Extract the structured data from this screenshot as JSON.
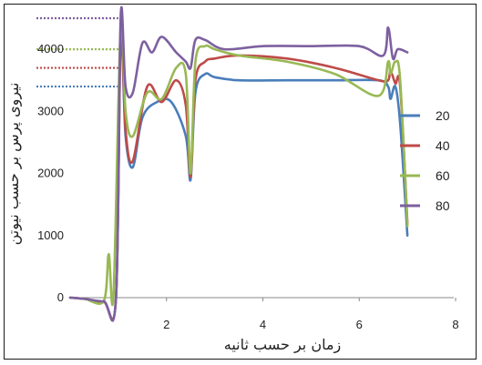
{
  "chart_data": {
    "type": "line",
    "title": "",
    "xlabel": "زمان بر حسب ثانیه",
    "ylabel": "نیروی پرس بر حسب نیوتن",
    "xlim": [
      0,
      8
    ],
    "ylim": [
      0,
      4500
    ],
    "x_ticks": [
      "2",
      "4",
      "6",
      "8"
    ],
    "y_ticks": [
      "0",
      "1000",
      "2000",
      "3000",
      "4000"
    ],
    "grid": false,
    "legend_position": "right",
    "series": [
      {
        "name": "20",
        "color": "#4a7ebb",
        "x": [
          0,
          0.3,
          0.7,
          0.95,
          1.05,
          1.15,
          1.3,
          1.5,
          1.8,
          2.1,
          2.4,
          2.5,
          2.6,
          2.8,
          3.0,
          3.5,
          4.5,
          5.5,
          6.4,
          6.6,
          6.65,
          6.75,
          6.85,
          7.0
        ],
        "y": [
          0,
          -20,
          -70,
          -20,
          4200,
          2600,
          2100,
          2900,
          3150,
          3150,
          2600,
          1900,
          3300,
          3600,
          3550,
          3500,
          3500,
          3500,
          3500,
          3400,
          3200,
          3400,
          2800,
          1000
        ]
      },
      {
        "name": "40",
        "color": "#be4b48",
        "x": [
          0,
          0.3,
          0.7,
          0.95,
          1.05,
          1.15,
          1.3,
          1.6,
          1.9,
          2.2,
          2.4,
          2.5,
          2.6,
          2.8,
          3.0,
          3.5,
          4.5,
          5.5,
          6.4,
          6.6,
          6.65,
          6.75,
          6.85,
          7.0
        ],
        "y": [
          0,
          -20,
          -70,
          -20,
          4300,
          2700,
          2200,
          3400,
          3150,
          3500,
          3100,
          1950,
          3500,
          3800,
          3850,
          3900,
          3850,
          3700,
          3500,
          3500,
          3650,
          3450,
          3400,
          1200
        ]
      },
      {
        "name": "60",
        "color": "#98b954",
        "x": [
          0,
          0.3,
          0.7,
          0.8,
          0.9,
          1.05,
          1.15,
          1.3,
          1.6,
          1.9,
          2.2,
          2.4,
          2.5,
          2.6,
          2.8,
          3.0,
          3.5,
          4.5,
          5.5,
          6.4,
          6.6,
          6.65,
          6.75,
          6.85,
          7.0
        ],
        "y": [
          0,
          -20,
          -50,
          700,
          50,
          4400,
          3000,
          2600,
          3300,
          3200,
          3700,
          3600,
          2000,
          3800,
          4050,
          4000,
          3900,
          3800,
          3600,
          3250,
          3800,
          3600,
          3800,
          3500,
          1150
        ]
      },
      {
        "name": "80",
        "color": "#7d60a0",
        "x": [
          0,
          0.3,
          0.7,
          0.95,
          1.05,
          1.15,
          1.3,
          1.5,
          1.7,
          1.9,
          2.2,
          2.4,
          2.5,
          2.6,
          2.8,
          3.2,
          4.0,
          5.0,
          6.0,
          6.5,
          6.6,
          6.7,
          6.8,
          7.0
        ],
        "y": [
          0,
          -20,
          -60,
          -20,
          4550,
          3400,
          3300,
          4100,
          3950,
          4200,
          3950,
          3800,
          3700,
          4150,
          4150,
          4000,
          4050,
          4050,
          4050,
          3900,
          4350,
          3850,
          4000,
          3950
        ]
      }
    ],
    "reference_lines": [
      {
        "y": 4500,
        "color": "#7d60a0"
      },
      {
        "y": 4000,
        "color": "#98b954"
      },
      {
        "y": 3700,
        "color": "#be4b48"
      },
      {
        "y": 3400,
        "color": "#4a7ebb"
      }
    ]
  }
}
